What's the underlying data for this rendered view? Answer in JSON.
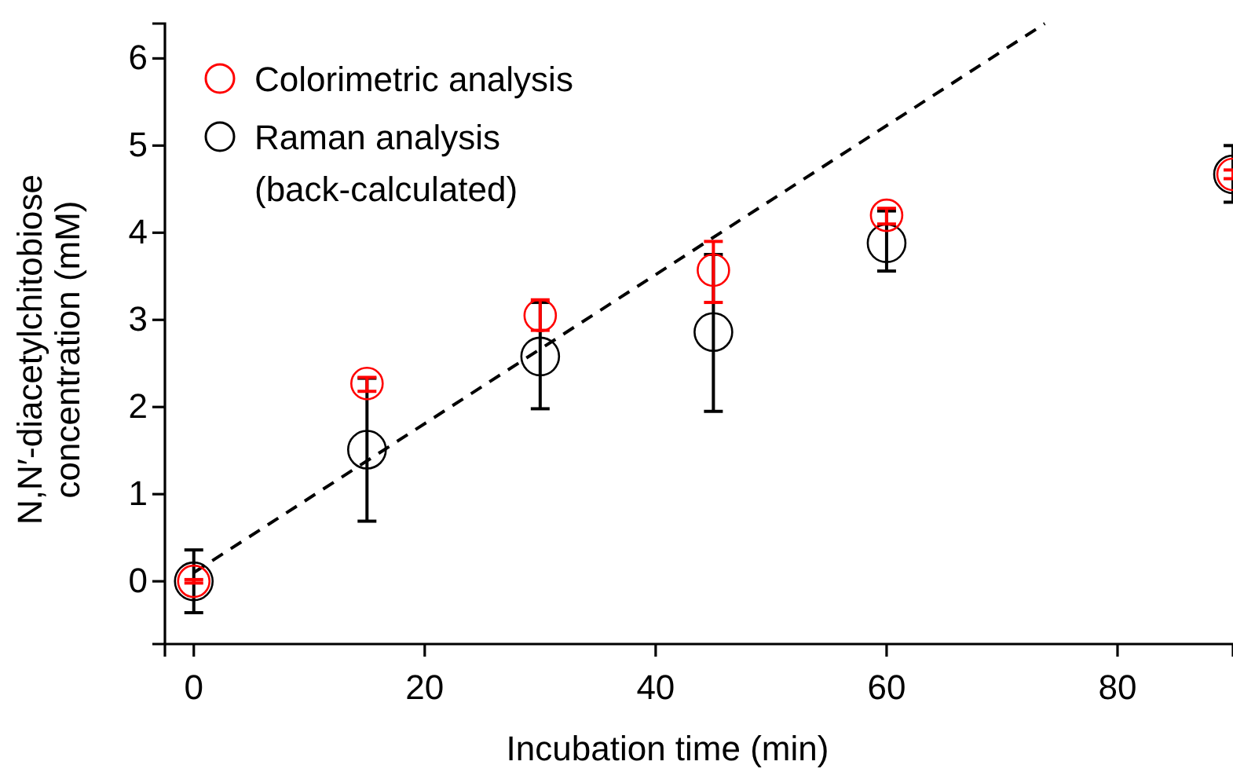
{
  "chart_data": {
    "type": "scatter",
    "xlabel": "Incubation time (min)",
    "ylabel": "N,N′-diacetylchitobiose\nconcentration (mM)",
    "xlim": [
      -2.5,
      90
    ],
    "xticks": [
      0,
      20,
      40,
      60,
      80
    ],
    "ylim": [
      -0.72,
      6.4
    ],
    "yticks": [
      0,
      1,
      2,
      3,
      4,
      5,
      6
    ],
    "grid": false,
    "legend": "top left",
    "marker": "circle",
    "series": [
      {
        "name": "Colorimetric analysis",
        "color": "#ff0000",
        "x": [
          0,
          15,
          30,
          45,
          60,
          90
        ],
        "values": [
          0,
          2.27,
          3.05,
          3.57,
          4.2,
          4.67
        ],
        "errors": [
          0.02,
          [
            2.18,
            2.34
          ],
          [
            2.88,
            3.23
          ],
          [
            3.2,
            3.9
          ],
          [
            4.1,
            4.28
          ],
          0.05
        ]
      },
      {
        "name": "Raman analysis\n(back-calculated)",
        "color": "#000000",
        "x": [
          0,
          15,
          30,
          45,
          60,
          90
        ],
        "values": [
          0,
          1.51,
          2.58,
          2.86,
          3.88,
          4.67
        ],
        "errors": [
          0.36,
          [
            0.69,
            2.33
          ],
          [
            1.98,
            3.2
          ],
          [
            1.95,
            3.75
          ],
          [
            3.56,
            4.25
          ],
          [
            4.35,
            5.0
          ]
        ]
      },
      {
        "type": "line",
        "color": "#000000",
        "line_style": "dashed",
        "marker": "none",
        "x": [
          0,
          73.7
        ],
        "values": [
          0.1,
          6.4
        ]
      }
    ]
  }
}
